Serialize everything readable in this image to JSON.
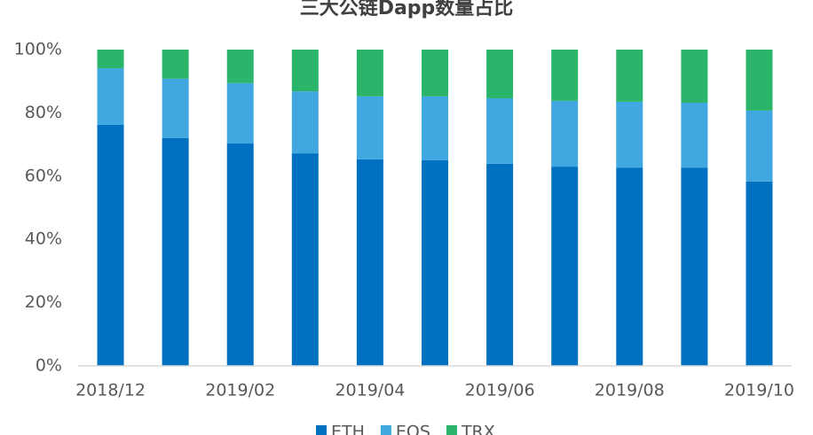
{
  "chart_data": {
    "type": "stacked-bar",
    "title": "三大公链Dapp数量占比",
    "categories": [
      "2018/12",
      null,
      "2019/02",
      null,
      "2019/04",
      null,
      "2019/06",
      null,
      "2019/08",
      null,
      "2019/10"
    ],
    "series": [
      {
        "name": "ETH",
        "color": "#0070c0",
        "values": [
          76.2,
          72,
          70.3,
          67.2,
          65.3,
          65,
          63.9,
          63,
          62.7,
          62.7,
          58.3
        ]
      },
      {
        "name": "EOS",
        "color": "#41a7e0",
        "values": [
          17.9,
          18.8,
          19.1,
          19.6,
          19.9,
          20.2,
          20.7,
          20.8,
          20.8,
          20.5,
          22.4
        ]
      },
      {
        "name": "TRX",
        "color": "#2bb56b",
        "values": [
          5.9,
          9.2,
          10.6,
          13.2,
          14.8,
          14.8,
          15.4,
          16.2,
          16.5,
          16.8,
          19.3
        ]
      }
    ],
    "ylim": [
      0,
      100
    ],
    "yticks": [
      {
        "value": 0,
        "label": "0%"
      },
      {
        "value": 20,
        "label": "20%"
      },
      {
        "value": 40,
        "label": "40%"
      },
      {
        "value": 60,
        "label": "60%"
      },
      {
        "value": 80,
        "label": "80%"
      },
      {
        "value": 100,
        "label": "100%"
      }
    ],
    "grid": false
  }
}
